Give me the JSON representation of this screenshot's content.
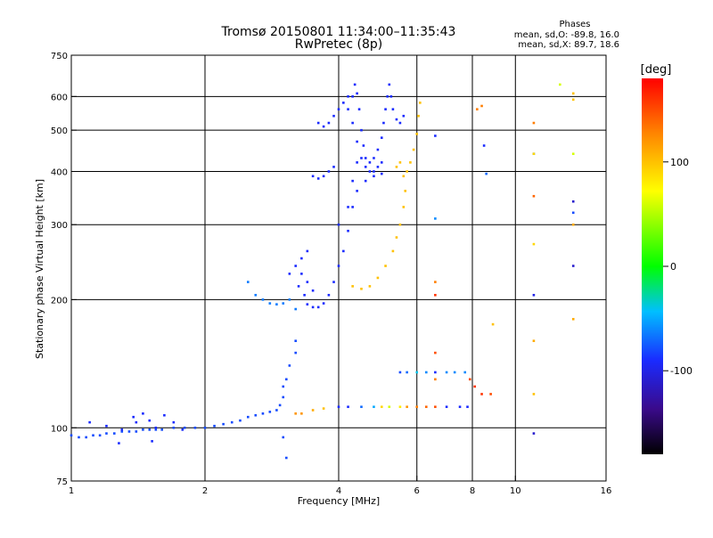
{
  "header": {
    "title_line1": "Tromsø 20150801 11:34:00–11:35:43",
    "title_line2": "RwPretec (8p)"
  },
  "phases": {
    "label": "Phases",
    "line_o": "mean, sd,O: -89.8, 16.0",
    "line_x": "mean, sd,X: 89.7, 18.6"
  },
  "colorbar": {
    "label": "[deg]",
    "ticks": [
      {
        "value": 100,
        "label": "100"
      },
      {
        "value": 0,
        "label": "0"
      },
      {
        "value": -100,
        "label": "-100"
      }
    ],
    "range": [
      -180,
      180
    ]
  },
  "chart_data": {
    "type": "scatter",
    "title": "Tromsø 20150801 11:34:00–11:35:43",
    "subtitle": "RwPretec (8p)",
    "xlabel": "Frequency [MHz]",
    "ylabel": "Stationary phase Virtual Height [km]",
    "xscale": "log",
    "yscale": "log",
    "xlim": [
      1,
      16
    ],
    "ylim": [
      75,
      750
    ],
    "xticks": [
      {
        "value": 1,
        "label": "1"
      },
      {
        "value": 2,
        "label": "2"
      },
      {
        "value": 4,
        "label": "4"
      },
      {
        "value": 6,
        "label": "6"
      },
      {
        "value": 8,
        "label": "8"
      },
      {
        "value": 10,
        "label": "10"
      },
      {
        "value": 16,
        "label": "16"
      }
    ],
    "yticks": [
      {
        "value": 75,
        "label": "75"
      },
      {
        "value": 100,
        "label": "100"
      },
      {
        "value": 200,
        "label": "200"
      },
      {
        "value": 300,
        "label": "300"
      },
      {
        "value": 400,
        "label": "400"
      },
      {
        "value": 500,
        "label": "500"
      },
      {
        "value": 600,
        "label": "600"
      },
      {
        "value": 750,
        "label": "750"
      }
    ],
    "grid_x": [
      2,
      4,
      6,
      8,
      10
    ],
    "grid_y": [
      100,
      200,
      300,
      400,
      500,
      600
    ],
    "color_scale": "phase [deg], -180 to 180",
    "series": [
      {
        "name": "",
        "points": [
          [
            1.0,
            96,
            -80
          ],
          [
            1.04,
            95,
            -80
          ],
          [
            1.08,
            95,
            -80
          ],
          [
            1.12,
            96,
            -80
          ],
          [
            1.16,
            96,
            -80
          ],
          [
            1.2,
            97,
            -80
          ],
          [
            1.25,
            97,
            -80
          ],
          [
            1.3,
            98,
            -80
          ],
          [
            1.35,
            98,
            -80
          ],
          [
            1.4,
            98,
            -80
          ],
          [
            1.45,
            99,
            -80
          ],
          [
            1.5,
            99,
            -80
          ],
          [
            1.55,
            99,
            -80
          ],
          [
            1.6,
            99,
            -80
          ],
          [
            1.7,
            100,
            -80
          ],
          [
            1.8,
            100,
            -80
          ],
          [
            1.9,
            100,
            -80
          ],
          [
            2.0,
            100,
            -80
          ],
          [
            2.1,
            101,
            -80
          ],
          [
            2.2,
            102,
            -80
          ],
          [
            2.3,
            103,
            -80
          ],
          [
            2.4,
            104,
            -80
          ],
          [
            2.5,
            106,
            -80
          ],
          [
            2.6,
            107,
            -80
          ],
          [
            2.7,
            108,
            -80
          ],
          [
            2.8,
            109,
            -80
          ],
          [
            2.9,
            110,
            -80
          ],
          [
            1.1,
            103,
            -90
          ],
          [
            1.2,
            101,
            -90
          ],
          [
            1.28,
            92,
            -90
          ],
          [
            1.38,
            106,
            -90
          ],
          [
            1.45,
            108,
            -90
          ],
          [
            1.5,
            104,
            -90
          ],
          [
            1.52,
            93,
            -90
          ],
          [
            1.55,
            100,
            -90
          ],
          [
            1.62,
            107,
            -90
          ],
          [
            1.7,
            103,
            -90
          ],
          [
            1.78,
            99,
            -90
          ],
          [
            1.4,
            103,
            -90
          ],
          [
            1.3,
            99,
            -90
          ],
          [
            2.95,
            113,
            -80
          ],
          [
            3.0,
            118,
            -80
          ],
          [
            3.0,
            125,
            -80
          ],
          [
            3.05,
            130,
            -80
          ],
          [
            3.1,
            140,
            -80
          ],
          [
            3.2,
            150,
            -80
          ],
          [
            3.2,
            160,
            -80
          ],
          [
            3.0,
            95,
            -80
          ],
          [
            3.05,
            85,
            -80
          ],
          [
            2.5,
            220,
            -65
          ],
          [
            2.6,
            205,
            -65
          ],
          [
            2.7,
            200,
            -65
          ],
          [
            2.8,
            196,
            -65
          ],
          [
            2.9,
            195,
            -65
          ],
          [
            3.0,
            196,
            -65
          ],
          [
            3.1,
            200,
            -65
          ],
          [
            3.2,
            190,
            -65
          ],
          [
            3.1,
            230,
            -90
          ],
          [
            3.2,
            240,
            -90
          ],
          [
            3.3,
            250,
            -90
          ],
          [
            3.4,
            260,
            -90
          ],
          [
            3.3,
            230,
            -90
          ],
          [
            3.4,
            220,
            -90
          ],
          [
            3.5,
            210,
            -90
          ],
          [
            3.25,
            215,
            -90
          ],
          [
            3.35,
            205,
            -90
          ],
          [
            3.4,
            195,
            -90
          ],
          [
            3.5,
            192,
            -90
          ],
          [
            3.6,
            192,
            -90
          ],
          [
            3.7,
            196,
            -90
          ],
          [
            3.8,
            205,
            -90
          ],
          [
            3.9,
            220,
            -90
          ],
          [
            4.0,
            240,
            -90
          ],
          [
            4.1,
            260,
            -90
          ],
          [
            4.2,
            290,
            -90
          ],
          [
            4.3,
            330,
            -90
          ],
          [
            4.3,
            380,
            -90
          ],
          [
            4.4,
            420,
            -90
          ],
          [
            4.4,
            470,
            -90
          ],
          [
            4.3,
            520,
            -90
          ],
          [
            4.2,
            560,
            -90
          ],
          [
            4.3,
            600,
            -90
          ],
          [
            4.35,
            640,
            -90
          ],
          [
            4.4,
            610,
            -90
          ],
          [
            4.45,
            560,
            -90
          ],
          [
            4.5,
            500,
            -90
          ],
          [
            4.55,
            460,
            -90
          ],
          [
            4.6,
            430,
            -90
          ],
          [
            4.7,
            420,
            -90
          ],
          [
            4.8,
            430,
            -90
          ],
          [
            4.9,
            450,
            -90
          ],
          [
            5.0,
            480,
            -90
          ],
          [
            5.05,
            520,
            -90
          ],
          [
            5.1,
            560,
            -90
          ],
          [
            5.15,
            600,
            -90
          ],
          [
            5.2,
            640,
            -90
          ],
          [
            5.25,
            600,
            -90
          ],
          [
            5.3,
            560,
            -90
          ],
          [
            5.4,
            530,
            -90
          ],
          [
            5.5,
            520,
            -90
          ],
          [
            5.6,
            540,
            -90
          ],
          [
            3.6,
            520,
            -90
          ],
          [
            3.7,
            510,
            -90
          ],
          [
            3.8,
            520,
            -90
          ],
          [
            3.9,
            540,
            -90
          ],
          [
            4.0,
            560,
            -90
          ],
          [
            4.1,
            580,
            -90
          ],
          [
            4.2,
            600,
            -90
          ],
          [
            3.5,
            390,
            -90
          ],
          [
            3.6,
            385,
            -90
          ],
          [
            3.7,
            390,
            -90
          ],
          [
            3.8,
            400,
            -90
          ],
          [
            3.9,
            410,
            -90
          ],
          [
            4.5,
            430,
            -90
          ],
          [
            4.6,
            410,
            -90
          ],
          [
            4.7,
            400,
            -90
          ],
          [
            4.8,
            400,
            -90
          ],
          [
            4.9,
            410,
            -90
          ],
          [
            5.0,
            420,
            -90
          ],
          [
            4.0,
            300,
            -90
          ],
          [
            4.2,
            330,
            -90
          ],
          [
            4.4,
            360,
            -90
          ],
          [
            4.6,
            380,
            -90
          ],
          [
            4.8,
            390,
            -90
          ],
          [
            5.0,
            395,
            -90
          ],
          [
            4.3,
            215,
            100
          ],
          [
            4.5,
            212,
            100
          ],
          [
            4.7,
            215,
            100
          ],
          [
            4.9,
            225,
            100
          ],
          [
            5.1,
            240,
            100
          ],
          [
            5.3,
            260,
            100
          ],
          [
            5.4,
            280,
            100
          ],
          [
            5.5,
            300,
            100
          ],
          [
            5.6,
            330,
            100
          ],
          [
            5.65,
            360,
            100
          ],
          [
            5.7,
            400,
            100
          ],
          [
            5.8,
            420,
            100
          ],
          [
            5.9,
            450,
            100
          ],
          [
            6.0,
            490,
            100
          ],
          [
            6.05,
            540,
            100
          ],
          [
            6.1,
            580,
            100
          ],
          [
            5.5,
            420,
            100
          ],
          [
            5.4,
            410,
            100
          ],
          [
            5.6,
            390,
            100
          ],
          [
            3.2,
            108,
            120
          ],
          [
            3.3,
            108,
            120
          ],
          [
            3.5,
            110,
            110
          ],
          [
            3.7,
            111,
            100
          ],
          [
            4.0,
            112,
            -90
          ],
          [
            4.2,
            112,
            -90
          ],
          [
            4.5,
            112,
            -70
          ],
          [
            4.8,
            112,
            -50
          ],
          [
            5.0,
            112,
            90
          ],
          [
            5.2,
            112,
            60
          ],
          [
            5.5,
            112,
            80
          ],
          [
            5.7,
            112,
            120
          ],
          [
            6.0,
            112,
            130
          ],
          [
            6.3,
            112,
            140
          ],
          [
            6.6,
            112,
            150
          ],
          [
            7.0,
            112,
            -90
          ],
          [
            7.5,
            112,
            -90
          ],
          [
            7.8,
            112,
            -90
          ],
          [
            5.5,
            135,
            -80
          ],
          [
            5.7,
            135,
            -70
          ],
          [
            6.0,
            135,
            -40
          ],
          [
            6.3,
            135,
            -60
          ],
          [
            6.6,
            135,
            -90
          ],
          [
            7.0,
            135,
            -60
          ],
          [
            7.3,
            135,
            -60
          ],
          [
            7.7,
            135,
            -60
          ],
          [
            6.6,
            485,
            -90
          ],
          [
            6.6,
            310,
            -60
          ],
          [
            6.6,
            220,
            130
          ],
          [
            6.6,
            205,
            160
          ],
          [
            6.6,
            150,
            150
          ],
          [
            6.6,
            130,
            130
          ],
          [
            7.9,
            130,
            150
          ],
          [
            8.1,
            125,
            160
          ],
          [
            8.4,
            120,
            160
          ],
          [
            8.5,
            460,
            -90
          ],
          [
            8.6,
            395,
            -70
          ],
          [
            8.2,
            560,
            130
          ],
          [
            8.4,
            570,
            130
          ],
          [
            8.8,
            120,
            150
          ],
          [
            8.9,
            175,
            100
          ],
          [
            11.0,
            440,
            -70
          ],
          [
            11.0,
            440,
            90
          ],
          [
            11.0,
            350,
            140
          ],
          [
            11.0,
            270,
            90
          ],
          [
            11.0,
            205,
            -100
          ],
          [
            11.0,
            160,
            110
          ],
          [
            11.0,
            120,
            100
          ],
          [
            11.0,
            97,
            -110
          ],
          [
            11.0,
            520,
            130
          ],
          [
            13.5,
            340,
            -110
          ],
          [
            13.5,
            440,
            60
          ],
          [
            13.5,
            320,
            -80
          ],
          [
            13.5,
            300,
            110
          ],
          [
            13.5,
            240,
            -110
          ],
          [
            13.5,
            180,
            110
          ],
          [
            13.5,
            590,
            100
          ],
          [
            13.5,
            610,
            100
          ],
          [
            12.6,
            640,
            60
          ]
        ]
      }
    ]
  }
}
